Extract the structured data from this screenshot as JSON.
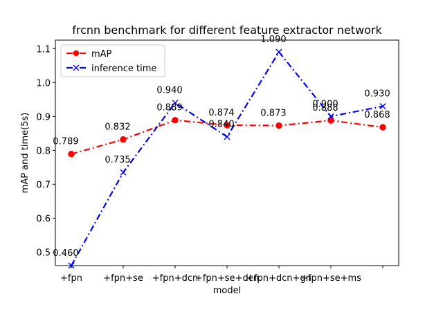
{
  "chart_data": {
    "type": "line",
    "title": "frcnn benchmark for different feature extractor network",
    "xlabel": "model",
    "ylabel": "mAP and time(5s)",
    "categories": [
      "+fpn",
      "+fpn+se",
      "+fpn+dcn",
      "+fpn+se+dcn",
      "+fpn+dcn+gn",
      "+fpn+se+ms",
      ""
    ],
    "ylim": [
      0.46,
      1.125
    ],
    "yticks": [
      0.5,
      0.6,
      0.7,
      0.8,
      0.9,
      1.0,
      1.1
    ],
    "ytick_labels": [
      "0.5",
      "0.6",
      "0.7",
      "0.8",
      "0.9",
      "1.0",
      "1.1"
    ],
    "grid": false,
    "legend_position": "top-left",
    "series": [
      {
        "name": "mAP",
        "color": "#ff0000",
        "marker": "circle",
        "line_style": "dash-dot",
        "values": [
          0.789,
          0.832,
          0.889,
          0.874,
          0.873,
          0.888,
          0.868
        ],
        "labels": [
          "0.789",
          "0.832",
          "0.889",
          "0.874",
          "0.873",
          "0.888",
          "0.868"
        ]
      },
      {
        "name": "inference time",
        "color": "#0000ff",
        "marker": "x",
        "line_style": "dash-dot",
        "values": [
          0.46,
          0.735,
          0.94,
          0.84,
          1.09,
          0.9,
          0.93
        ],
        "labels": [
          "0.460",
          "0.735",
          "0.940",
          "0.840",
          "1.090",
          "0.900",
          "0.930"
        ]
      }
    ]
  }
}
